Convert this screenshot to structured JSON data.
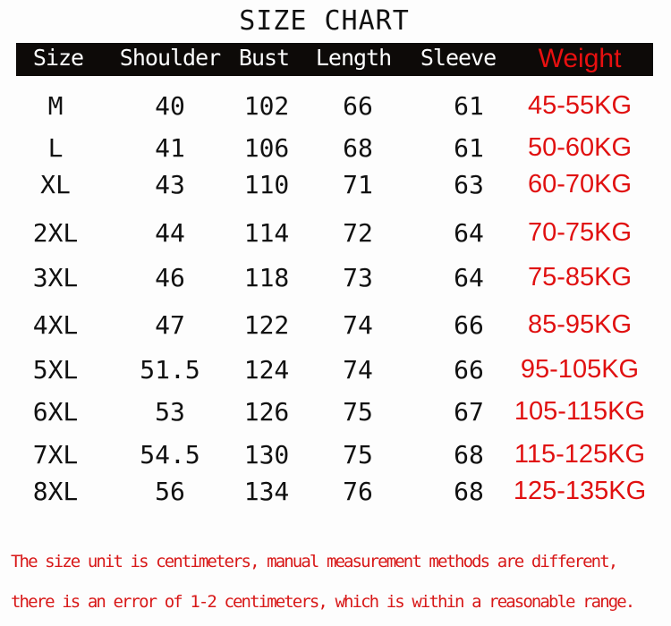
{
  "title": "SIZE CHART",
  "headers": [
    "Size",
    "Shoulder",
    "Bust",
    "Length",
    "Sleeve",
    "Weight"
  ],
  "accent_color": "#e81010",
  "rows": [
    [
      "M",
      "40",
      "102",
      "66",
      "61",
      "45-55KG"
    ],
    [
      "L",
      "41",
      "106",
      "68",
      "61",
      "50-60KG"
    ],
    [
      "XL",
      "43",
      "110",
      "71",
      "63",
      "60-70KG"
    ],
    [
      "2XL",
      "44",
      "114",
      "72",
      "64",
      "70-75KG"
    ],
    [
      "3XL",
      "46",
      "118",
      "73",
      "64",
      "75-85KG"
    ],
    [
      "4XL",
      "47",
      "122",
      "74",
      "66",
      "85-95KG"
    ],
    [
      "5XL",
      "51.5",
      "124",
      "74",
      "66",
      "95-105KG"
    ],
    [
      "6XL",
      "53",
      "126",
      "75",
      "67",
      "105-115KG"
    ],
    [
      "7XL",
      "54.5",
      "130",
      "75",
      "68",
      "115-125KG"
    ],
    [
      "8XL",
      "56",
      "134",
      "76",
      "68",
      "125-135KG"
    ]
  ],
  "notes": [
    "The size unit is centimeters, manual measurement methods are different,",
    "there is an error of 1-2 centimeters, which is within a reasonable range."
  ]
}
